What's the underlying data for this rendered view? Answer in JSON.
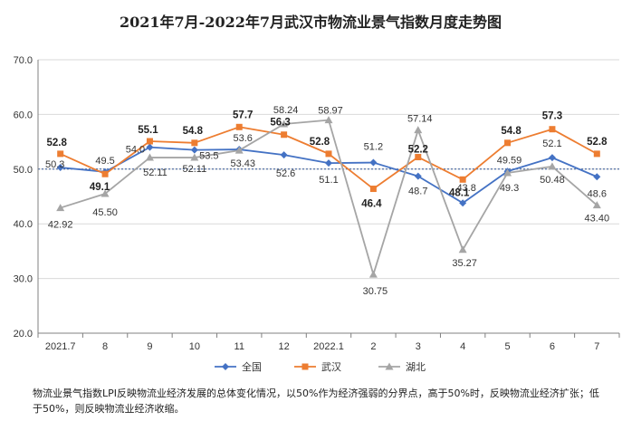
{
  "chart_data": {
    "type": "line",
    "title": "2021年7月-2022年7月武汉市物流业景气指数月度走势图",
    "categories": [
      "2021.7",
      "8",
      "9",
      "10",
      "11",
      "12",
      "2022.1",
      "2",
      "3",
      "4",
      "5",
      "6",
      "7"
    ],
    "ylim": [
      20,
      70
    ],
    "yticks": [
      "20.0",
      "30.0",
      "40.0",
      "50.0",
      "60.0",
      "70.0"
    ],
    "reference_line": 50,
    "grid": "horizontal",
    "legend_position": "bottom",
    "series": [
      {
        "name": "全国",
        "color": "#4472C4",
        "marker": "diamond",
        "values": [
          50.3,
          49.5,
          54.0,
          53.5,
          53.6,
          52.6,
          51.1,
          51.2,
          48.7,
          43.8,
          49.59,
          52.1,
          48.6
        ],
        "labels": [
          "50.3",
          "49.5",
          "54.0",
          "53.5",
          "53.6",
          "52.6",
          "51.1",
          "51.2",
          "48.7",
          "43.8",
          "49.59",
          "52.1",
          "48.6"
        ]
      },
      {
        "name": "武汉",
        "color": "#ED7D31",
        "marker": "square",
        "values": [
          52.8,
          49.1,
          55.1,
          54.8,
          57.7,
          56.3,
          52.8,
          46.4,
          52.2,
          48.1,
          54.8,
          57.3,
          52.8
        ],
        "labels": [
          "52.8",
          "49.1",
          "55.1",
          "54.8",
          "57.7",
          "56.3",
          "52.8",
          "46.4",
          "52.2",
          "48.1",
          "54.8",
          "57.3",
          "52.8"
        ]
      },
      {
        "name": "湖北",
        "color": "#A5A5A5",
        "marker": "triangle",
        "values": [
          42.92,
          45.5,
          52.11,
          52.11,
          53.43,
          58.24,
          58.97,
          30.75,
          57.14,
          35.27,
          49.3,
          50.48,
          43.4
        ],
        "labels": [
          "42.92",
          "45.50",
          "52.11",
          "52.11",
          "53.43",
          "58.24",
          "58.97",
          "30.75",
          "57.14",
          "35.27",
          "49.3",
          "50.48",
          "43.40"
        ]
      }
    ],
    "note": "物流业景气指数LPI反映物流业经济发展的总体变化情况，以50%作为经济强弱的分界点，高于50%时，反映物流业经济扩张；低于50%，则反映物流业经济收缩。"
  }
}
